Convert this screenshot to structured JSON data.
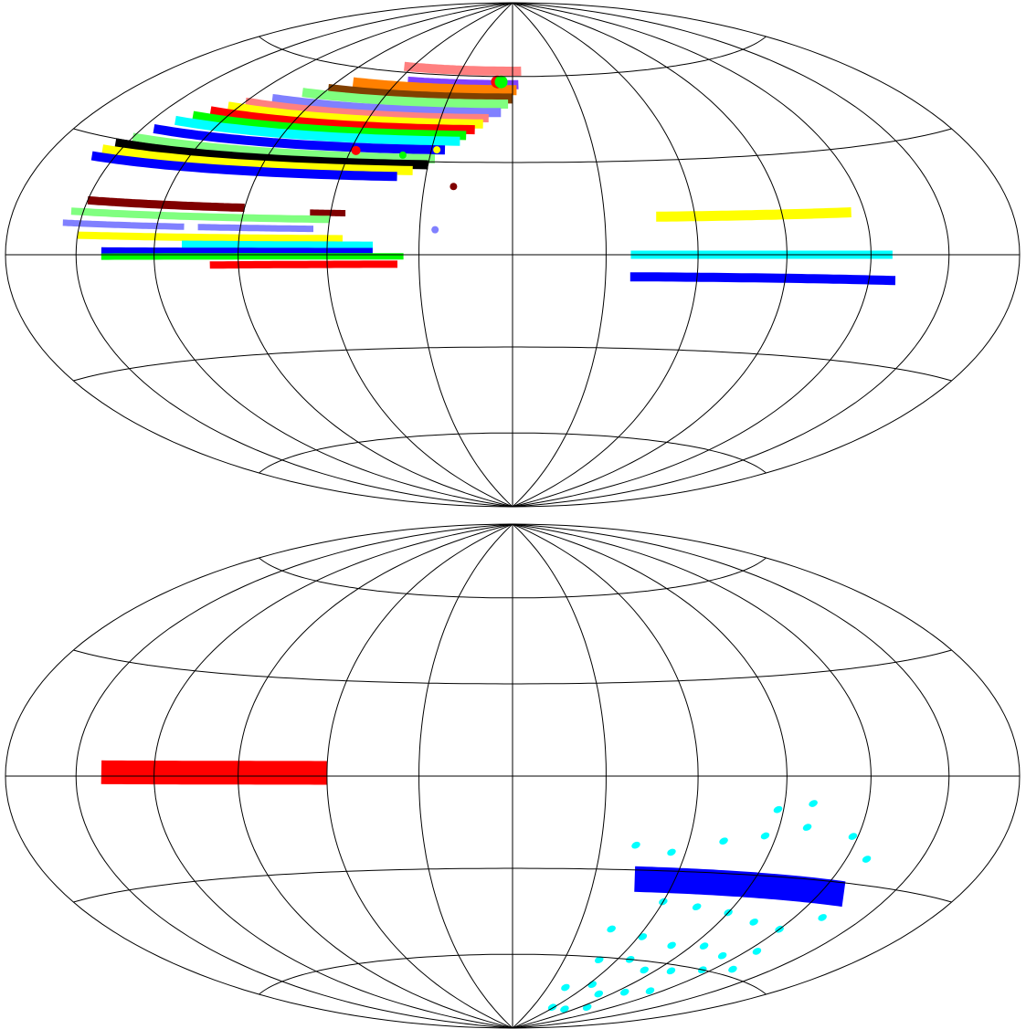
{
  "maps": [
    {
      "id": "top",
      "bands": [
        {
          "color": "#ff8080",
          "lon": [
            -65,
            5
          ],
          "lat": [
            62,
            62
          ],
          "w": 10
        },
        {
          "color": "#8040ff",
          "lon": [
            -55,
            3
          ],
          "lat": [
            57,
            57
          ],
          "w": 10
        },
        {
          "color": "#ff8000",
          "lon": [
            -82,
            2
          ],
          "lat": [
            55,
            55
          ],
          "w": 11
        },
        {
          "color": "#804000",
          "lon": [
            -90,
            0
          ],
          "lat": [
            52,
            52
          ],
          "w": 11
        },
        {
          "color": "#80ff80",
          "lon": [
            -100,
            -2
          ],
          "lat": [
            50,
            50
          ],
          "w": 10
        },
        {
          "color": "#8080ff",
          "lon": [
            -110,
            -5
          ],
          "lat": [
            47,
            47
          ],
          "w": 10
        },
        {
          "color": "#ff8080",
          "lon": [
            -120,
            -10
          ],
          "lat": [
            45,
            45
          ],
          "w": 9
        },
        {
          "color": "#ffff00",
          "lon": [
            -125,
            -12
          ],
          "lat": [
            43,
            43
          ],
          "w": 10
        },
        {
          "color": "#ff0000",
          "lon": [
            -130,
            -15
          ],
          "lat": [
            41,
            41
          ],
          "w": 10
        },
        {
          "color": "#00ff00",
          "lon": [
            -135,
            -18
          ],
          "lat": [
            39,
            39
          ],
          "w": 10
        },
        {
          "color": "#00ffff",
          "lon": [
            -140,
            -20
          ],
          "lat": [
            37,
            37
          ],
          "w": 10
        },
        {
          "color": "#0000ff",
          "lon": [
            -145,
            -25
          ],
          "lat": [
            34,
            34
          ],
          "w": 10
        },
        {
          "color": "#80ff80",
          "lon": [
            -150,
            -28
          ],
          "lat": [
            31,
            31
          ],
          "w": 10
        },
        {
          "color": "#000000",
          "lon": [
            -155,
            -30
          ],
          "lat": [
            29,
            29
          ],
          "w": 10
        },
        {
          "color": "#ffff00",
          "lon": [
            -158,
            -35
          ],
          "lat": [
            27,
            27
          ],
          "w": 10
        },
        {
          "color": "#0000ff",
          "lon": [
            -160,
            -40
          ],
          "lat": [
            25,
            25
          ],
          "w": 10
        },
        {
          "color": "#800000",
          "lon": [
            -150,
            -90
          ],
          "lat": [
            14,
            14
          ],
          "w": 9
        },
        {
          "color": "#800000",
          "lon": [
            -67,
            -55
          ],
          "lat": [
            13,
            13
          ],
          "w": 7
        },
        {
          "color": "#80ff80",
          "lon": [
            -155,
            -60
          ],
          "lat": [
            11,
            11
          ],
          "w": 8
        },
        {
          "color": "#8080ff",
          "lon": [
            -157,
            -110
          ],
          "lat": [
            8,
            8
          ],
          "w": 7
        },
        {
          "color": "#8080ff",
          "lon": [
            -105,
            -65
          ],
          "lat": [
            8,
            8
          ],
          "w": 7
        },
        {
          "color": "#ffff00",
          "lon": [
            -150,
            -55
          ],
          "lat": [
            5,
            5
          ],
          "w": 8
        },
        {
          "color": "#00ffff",
          "lon": [
            -110,
            -45
          ],
          "lat": [
            3,
            3
          ],
          "w": 8
        },
        {
          "color": "#0000ff",
          "lon": [
            -140,
            -45
          ],
          "lat": [
            1,
            1
          ],
          "w": 8
        },
        {
          "color": "#00ff00",
          "lon": [
            -140,
            -35
          ],
          "lat": [
            -0.5,
            -0.5
          ],
          "w": 7
        },
        {
          "color": "#ff0000",
          "lon": [
            -100,
            -37
          ],
          "lat": [
            -3,
            -3
          ],
          "w": 8
        },
        {
          "color": "#ffff00",
          "lon": [
            47,
            115
          ],
          "lat": [
            12,
            12
          ],
          "w": 11
        },
        {
          "color": "#00ffff",
          "lon": [
            38,
            128
          ],
          "lat": [
            0,
            0
          ],
          "w": 9
        },
        {
          "color": "#0000ff",
          "lon": [
            38,
            130
          ],
          "lat": [
            -7,
            -7
          ],
          "w": 10
        }
      ],
      "blobs": [
        {
          "color": "#ff0000",
          "lon": -8,
          "lat": 58,
          "r": 7
        },
        {
          "color": "#00ff00",
          "lon": -6,
          "lat": 58,
          "r": 7
        },
        {
          "color": "#ff0000",
          "lon": -58,
          "lat": 33,
          "r": 5
        },
        {
          "color": "#00ff00",
          "lon": -40,
          "lat": 32,
          "r": 4
        },
        {
          "color": "#ffff00",
          "lon": -28,
          "lat": 34,
          "r": 4
        },
        {
          "color": "#800000",
          "lon": -20,
          "lat": 22,
          "r": 4
        },
        {
          "color": "#8080ff",
          "lon": -25,
          "lat": 8,
          "r": 4
        }
      ]
    },
    {
      "id": "bottom",
      "bands": [
        {
          "color": "#ff0000",
          "lon": [
            -140,
            -60
          ],
          "lat": [
            1,
            1
          ],
          "w": 26
        },
        {
          "color": "#0000ff",
          "lon": [
            45,
            130
          ],
          "lat": [
            -33,
            -33
          ],
          "w": 28
        }
      ],
      "scatter_color": "#00ffff",
      "scatter": [
        [
          42,
          -22
        ],
        [
          55,
          -24
        ],
        [
          72,
          -20
        ],
        [
          86,
          -18
        ],
        [
          100,
          -15
        ],
        [
          118,
          -17
        ],
        [
          128,
          -23
        ],
        [
          60,
          -40
        ],
        [
          75,
          -41
        ],
        [
          90,
          -42
        ],
        [
          105,
          -44
        ],
        [
          120,
          -45
        ],
        [
          132,
          -40
        ],
        [
          45,
          -50
        ],
        [
          62,
          -52
        ],
        [
          80,
          -54
        ],
        [
          96,
          -53
        ],
        [
          112,
          -55
        ],
        [
          125,
          -52
        ],
        [
          50,
          -61
        ],
        [
          67,
          -60
        ],
        [
          83,
          -63
        ],
        [
          99,
          -62
        ],
        [
          115,
          -60
        ],
        [
          130,
          -58
        ],
        [
          45,
          -72
        ],
        [
          63,
          -70
        ],
        [
          80,
          -73
        ],
        [
          97,
          -71
        ],
        [
          112,
          -69
        ],
        [
          58,
          -80
        ],
        [
          78,
          -80
        ],
        [
          98,
          -78
        ],
        [
          88,
          -10
        ],
        [
          100,
          -8
        ]
      ]
    }
  ]
}
